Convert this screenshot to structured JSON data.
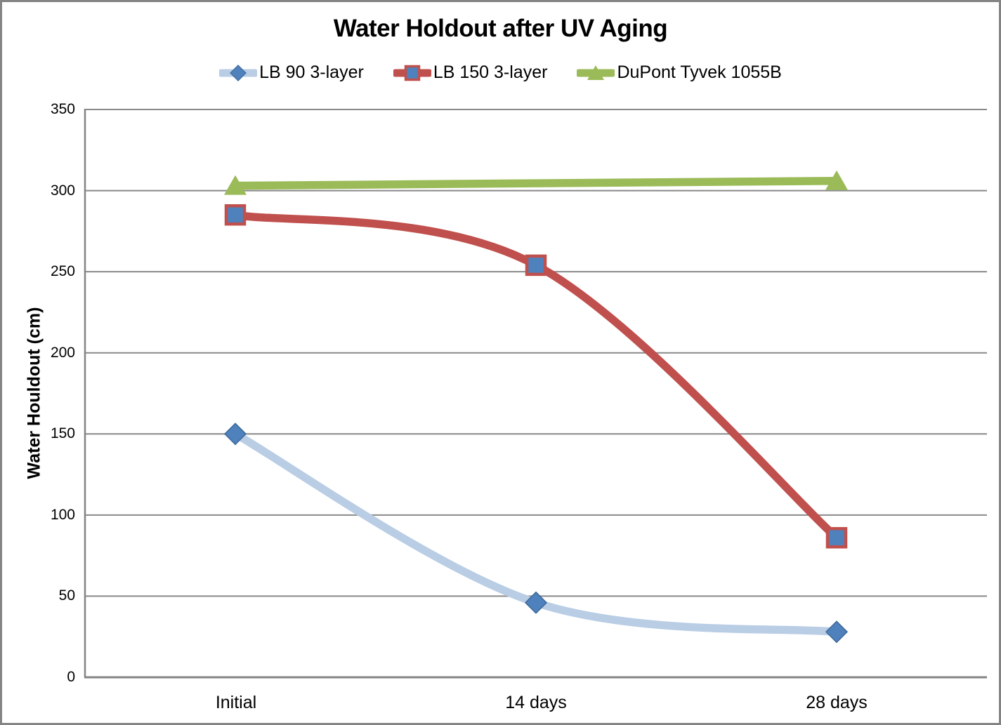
{
  "chart_data": {
    "type": "line",
    "title": "Water Holdout after UV Aging",
    "ylabel": "Water Houldout (cm)",
    "xlabel": "",
    "categories": [
      "Initial",
      "14 days",
      "28 days"
    ],
    "series": [
      {
        "name": "LB 90 3-layer",
        "values": [
          150,
          46,
          28
        ],
        "line_color": "#B9CDE5",
        "marker": "diamond",
        "marker_fill": "#4F81BD",
        "marker_border": "#3D6999"
      },
      {
        "name": "LB 150 3-layer",
        "values": [
          285,
          254,
          86
        ],
        "line_color": "#C0504D",
        "marker": "square",
        "marker_fill": "#4F81BD",
        "marker_border": "#C0504D"
      },
      {
        "name": "DuPont Tyvek 1055B",
        "values": [
          303,
          null,
          306
        ],
        "line_color": "#9BBB59",
        "marker": "triangle",
        "marker_fill": "#9BBB59",
        "marker_border": "#9BBB59"
      }
    ],
    "ylim": [
      0,
      350
    ],
    "ytick_step": 50,
    "grid": true,
    "legend_position": "top",
    "smoothed_lines": true,
    "colors": {
      "gridline": "#898989",
      "axis": "#848484",
      "text": "#000000",
      "background": "#FFFFFF"
    }
  }
}
